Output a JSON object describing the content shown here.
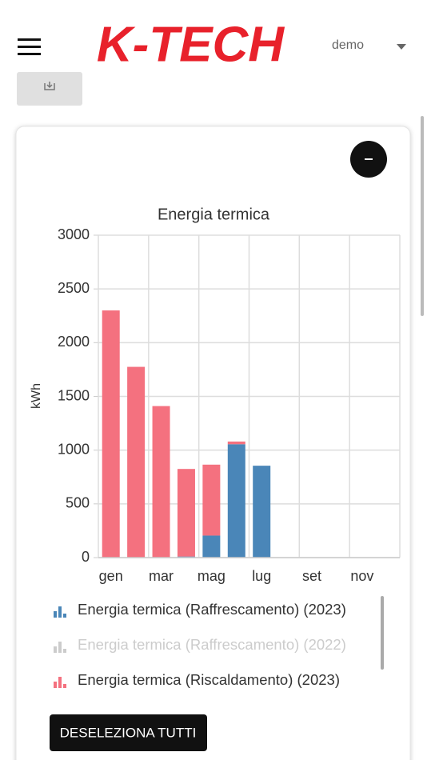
{
  "header": {
    "logo": "K-TECH",
    "user": "demo"
  },
  "chart_data": {
    "type": "bar",
    "stacked": true,
    "title": "Energia termica",
    "y_label": "kWh",
    "categories": [
      "gen",
      null,
      "mar",
      null,
      "mag",
      null,
      "lug",
      null,
      "set",
      null,
      "nov",
      null
    ],
    "series": [
      {
        "name": "Energia termica (Raffrescamento) (2023)",
        "color": "#4a86b8",
        "visible": true,
        "values": [
          0,
          0,
          0,
          10,
          205,
          1055,
          855,
          null,
          null,
          null,
          null,
          null
        ]
      },
      {
        "name": "Energia termica (Raffrescamento) (2022)",
        "color": "#cccccc",
        "visible": false
      },
      {
        "name": "Energia termica (Riscaldamento) (2023)",
        "color": "#f4717f",
        "visible": true,
        "values": [
          2300,
          1775,
          1410,
          815,
          660,
          25,
          0,
          null,
          null,
          null,
          null,
          null
        ]
      }
    ],
    "ylim": [
      0,
      3000
    ],
    "yticks": [
      0,
      500,
      1000,
      1500,
      2000,
      2500,
      3000
    ],
    "grid": true
  },
  "buttons": {
    "deselect_all": "DESELEZIONA TUTTI"
  }
}
